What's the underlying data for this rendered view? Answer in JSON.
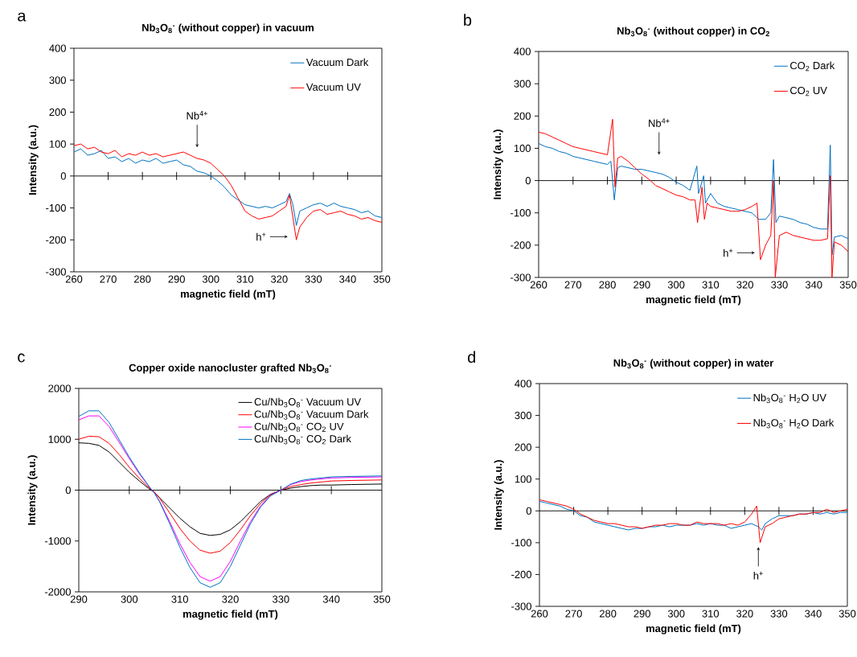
{
  "chart_data": [
    {
      "type": "line",
      "title": "Nb$_{3}$O$_{8}$$^{-}$ (without copper) in vacuum",
      "xlabel": "magnetic field (mT)",
      "ylabel": "Intensity (a.u.)",
      "xlim": [
        260,
        350
      ],
      "ylim": [
        -300,
        400
      ],
      "xticks": [
        260,
        270,
        280,
        290,
        300,
        310,
        320,
        330,
        340,
        350
      ],
      "yticks": [
        -300,
        -200,
        -100,
        0,
        100,
        200,
        300,
        400
      ],
      "legend": "top right",
      "marker": "none",
      "line_style": "solid",
      "annotations": [
        "a",
        "Nb$^{4+}$",
        "h$^{+}$"
      ],
      "series": [
        {
          "name": "Vacuum Dark",
          "color": "#0070c0",
          "x": [
            260,
            262,
            264,
            266,
            268,
            270,
            272,
            274,
            276,
            278,
            280,
            282,
            284,
            286,
            288,
            290,
            292,
            294,
            296,
            298,
            300,
            302,
            304,
            306,
            308,
            310,
            312,
            314,
            316,
            318,
            320,
            322,
            323,
            324,
            325,
            326,
            328,
            330,
            332,
            334,
            336,
            338,
            340,
            342,
            344,
            346,
            348,
            350
          ],
          "values": [
            75,
            85,
            65,
            70,
            80,
            55,
            60,
            45,
            55,
            40,
            50,
            45,
            55,
            40,
            45,
            50,
            35,
            30,
            15,
            10,
            0,
            -15,
            -35,
            -60,
            -75,
            -90,
            -95,
            -100,
            -95,
            -100,
            -90,
            -80,
            -55,
            -90,
            -155,
            -110,
            -100,
            -90,
            -85,
            -95,
            -85,
            -95,
            -100,
            -105,
            -115,
            -110,
            -125,
            -130
          ]
        },
        {
          "name": "Vacuum UV",
          "color": "#ff0000",
          "x": [
            260,
            262,
            264,
            266,
            268,
            270,
            272,
            274,
            276,
            278,
            280,
            282,
            284,
            286,
            288,
            290,
            292,
            294,
            296,
            298,
            300,
            302,
            304,
            306,
            308,
            310,
            312,
            314,
            316,
            318,
            320,
            322,
            323,
            324,
            325,
            326,
            328,
            330,
            332,
            334,
            336,
            338,
            340,
            342,
            344,
            346,
            348,
            350
          ],
          "values": [
            95,
            100,
            85,
            90,
            75,
            70,
            80,
            60,
            70,
            65,
            75,
            65,
            70,
            60,
            65,
            70,
            75,
            65,
            55,
            50,
            40,
            20,
            0,
            -30,
            -70,
            -110,
            -125,
            -135,
            -130,
            -125,
            -110,
            -95,
            -60,
            -130,
            -200,
            -160,
            -130,
            -110,
            -105,
            -120,
            -115,
            -110,
            -120,
            -125,
            -135,
            -130,
            -140,
            -145
          ]
        }
      ]
    },
    {
      "type": "line",
      "title": "Nb$_{3}$O$_{8}$$^{-}$ (without copper) in CO$_{2}$",
      "xlabel": "magnetic field (mT)",
      "ylabel": "Intensity (a.u.)",
      "xlim": [
        260,
        350
      ],
      "ylim": [
        -300,
        400
      ],
      "xticks": [
        260,
        270,
        280,
        290,
        300,
        310,
        320,
        330,
        340,
        350
      ],
      "yticks": [
        -300,
        -200,
        -100,
        0,
        100,
        200,
        300,
        400
      ],
      "legend": "top right",
      "marker": "none",
      "line_style": "solid",
      "annotations": [
        "b",
        "Nb$^{4+}$",
        "h$^{+}$"
      ],
      "series": [
        {
          "name": "CO$_{2}$ Dark",
          "color": "#0070c0",
          "x": [
            260,
            262,
            264,
            266,
            268,
            270,
            272,
            274,
            276,
            278,
            280,
            281,
            282,
            283,
            284,
            286,
            288,
            290,
            292,
            294,
            296,
            298,
            300,
            302,
            304,
            306,
            306.5,
            308,
            308.5,
            310,
            312,
            314,
            316,
            318,
            320,
            322,
            324,
            326,
            327.5,
            328.3,
            329,
            330,
            332,
            334,
            336,
            338,
            340,
            342,
            344,
            344.8,
            345.3,
            346,
            348,
            350
          ],
          "values": [
            115,
            105,
            100,
            90,
            85,
            75,
            70,
            65,
            60,
            55,
            50,
            60,
            -60,
            40,
            45,
            40,
            35,
            35,
            30,
            25,
            20,
            10,
            -5,
            -15,
            -30,
            45,
            -40,
            15,
            -70,
            -40,
            -70,
            -80,
            -85,
            -90,
            -95,
            -100,
            -120,
            -120,
            -100,
            65,
            -130,
            -110,
            -115,
            -120,
            -130,
            -135,
            -145,
            -150,
            -150,
            110,
            -230,
            -175,
            -170,
            -180
          ]
        },
        {
          "name": "CO$_{2}$ UV",
          "color": "#ff0000",
          "x": [
            260,
            262,
            264,
            266,
            268,
            270,
            272,
            274,
            276,
            278,
            280,
            281.5,
            282.2,
            283,
            284,
            286,
            288,
            290,
            292,
            294,
            296,
            298,
            300,
            302,
            304,
            305.5,
            306.2,
            307.5,
            308.2,
            309,
            310,
            312,
            314,
            316,
            318,
            320,
            322,
            323.5,
            324.5,
            326,
            327.5,
            328.3,
            328.8,
            330,
            332,
            334,
            336,
            338,
            340,
            342,
            344,
            344.8,
            345.3,
            346,
            348,
            350
          ],
          "values": [
            150,
            145,
            135,
            125,
            115,
            105,
            100,
            95,
            90,
            85,
            80,
            190,
            -20,
            70,
            75,
            60,
            40,
            20,
            5,
            -15,
            -25,
            -35,
            -45,
            -50,
            -60,
            -60,
            -130,
            -20,
            -120,
            -70,
            -80,
            -85,
            -90,
            -95,
            -95,
            -90,
            -80,
            -70,
            -245,
            -200,
            -170,
            0,
            -300,
            -170,
            -160,
            -170,
            -175,
            -180,
            -185,
            -185,
            -180,
            15,
            -300,
            -190,
            -200,
            -220
          ]
        }
      ]
    },
    {
      "type": "line",
      "title": "Copper oxide nanocluster grafted Nb$_{3}$O$_{8}$$^{-}$",
      "xlabel": "magnetic field (mT)",
      "ylabel": "Intensity (a.u.)",
      "xlim": [
        290,
        350
      ],
      "ylim": [
        -2000,
        2000
      ],
      "xticks": [
        290,
        300,
        310,
        320,
        330,
        340,
        350
      ],
      "yticks": [
        -2000,
        -1000,
        0,
        1000,
        2000
      ],
      "legend": "top right",
      "marker": "none",
      "line_style": "solid",
      "annotations": [
        "c"
      ],
      "series": [
        {
          "name": "Cu/Nb$_{3}$O$_{8}$$^{-}$ Vacuum UV",
          "color": "#000000",
          "x": [
            290,
            292,
            294,
            296,
            298,
            300,
            302,
            304,
            305,
            306,
            308,
            310,
            312,
            314,
            316,
            318,
            320,
            322,
            324,
            326,
            328,
            330,
            332,
            334,
            336,
            338,
            340,
            344,
            350
          ],
          "values": [
            930,
            920,
            880,
            750,
            550,
            350,
            180,
            20,
            -50,
            -150,
            -350,
            -550,
            -720,
            -850,
            -890,
            -870,
            -780,
            -620,
            -420,
            -220,
            -80,
            0,
            40,
            70,
            90,
            100,
            100,
            110,
            120
          ]
        },
        {
          "name": "Cu/Nb$_{3}$O$_{8}$$^{-}$ Vacuum Dark",
          "color": "#ff0000",
          "x": [
            290,
            292,
            294,
            296,
            298,
            300,
            302,
            304,
            305,
            306,
            308,
            310,
            312,
            314,
            316,
            318,
            320,
            322,
            324,
            326,
            328,
            330,
            332,
            334,
            336,
            338,
            340,
            344,
            350
          ],
          "values": [
            1000,
            1060,
            1050,
            920,
            700,
            450,
            230,
            40,
            -40,
            -160,
            -450,
            -750,
            -1000,
            -1180,
            -1240,
            -1200,
            -1030,
            -780,
            -500,
            -260,
            -90,
            0,
            70,
            110,
            140,
            160,
            180,
            190,
            200
          ]
        },
        {
          "name": "Cu/Nb$_{3}$O$_{8}$$^{-}$ CO$_{2}$ UV",
          "color": "#ff00ff",
          "x": [
            290,
            292,
            294,
            296,
            298,
            300,
            302,
            304,
            305,
            306,
            308,
            310,
            312,
            314,
            316,
            318,
            320,
            322,
            324,
            326,
            328,
            330,
            332,
            334,
            336,
            338,
            340,
            344,
            350
          ],
          "values": [
            1380,
            1460,
            1460,
            1250,
            940,
            620,
            320,
            60,
            -60,
            -220,
            -620,
            -1050,
            -1420,
            -1700,
            -1790,
            -1700,
            -1400,
            -1000,
            -620,
            -310,
            -100,
            0,
            110,
            170,
            200,
            220,
            240,
            250,
            260
          ]
        },
        {
          "name": "Cu/Nb$_{3}$O$_{8}$$^{-}$ CO$_{2}$ Dark",
          "color": "#0070c0",
          "x": [
            290,
            292,
            294,
            296,
            298,
            300,
            302,
            304,
            305,
            306,
            308,
            310,
            312,
            314,
            316,
            318,
            320,
            322,
            324,
            326,
            328,
            330,
            332,
            334,
            336,
            338,
            340,
            344,
            350
          ],
          "values": [
            1450,
            1560,
            1560,
            1330,
            990,
            650,
            340,
            60,
            -60,
            -230,
            -660,
            -1120,
            -1520,
            -1820,
            -1910,
            -1820,
            -1500,
            -1080,
            -660,
            -330,
            -110,
            0,
            120,
            190,
            220,
            240,
            260,
            270,
            280
          ]
        }
      ]
    },
    {
      "type": "line",
      "title": "Nb$_{3}$O$_{8}$$^{-}$ (without copper) in water",
      "xlabel": "magnetic field (mT)",
      "ylabel": "Intensity (a.u.)",
      "xlim": [
        260,
        350
      ],
      "ylim": [
        -300,
        400
      ],
      "xticks": [
        260,
        270,
        280,
        290,
        300,
        310,
        320,
        330,
        340,
        350
      ],
      "yticks": [
        -300,
        -200,
        -100,
        0,
        100,
        200,
        300,
        400
      ],
      "legend": "top right",
      "marker": "none",
      "line_style": "solid",
      "annotations": [
        "d",
        "h$^{+}$"
      ],
      "series": [
        {
          "name": "Nb$_{3}$O$_{8}$$^{-}$ H$_{2}$O UV",
          "color": "#0070c0",
          "x": [
            260,
            262,
            264,
            266,
            268,
            270,
            272,
            274,
            276,
            278,
            280,
            282,
            284,
            286,
            288,
            290,
            292,
            294,
            296,
            298,
            300,
            302,
            304,
            306,
            308,
            310,
            312,
            314,
            316,
            318,
            320,
            322,
            324,
            325,
            326,
            328,
            330,
            332,
            334,
            336,
            338,
            340,
            342,
            344,
            346,
            348,
            350
          ],
          "values": [
            30,
            25,
            20,
            15,
            5,
            0,
            -15,
            -20,
            -35,
            -40,
            -45,
            -50,
            -55,
            -60,
            -55,
            -55,
            -50,
            -50,
            -45,
            -50,
            -45,
            -45,
            -45,
            -40,
            -45,
            -40,
            -45,
            -45,
            -55,
            -50,
            -45,
            -40,
            -50,
            -60,
            -40,
            -25,
            -15,
            -15,
            -15,
            -10,
            -10,
            -5,
            -10,
            -5,
            -10,
            -5,
            -5
          ]
        },
        {
          "name": "Nb$_{3}$O$_{8}$$^{-}$ H$_{2}$O Dark",
          "color": "#ff0000",
          "x": [
            260,
            262,
            264,
            266,
            268,
            270,
            272,
            274,
            276,
            278,
            280,
            282,
            284,
            286,
            288,
            290,
            292,
            294,
            296,
            298,
            300,
            302,
            304,
            306,
            308,
            310,
            312,
            314,
            316,
            318,
            320,
            322,
            323.5,
            324.5,
            326,
            328,
            330,
            332,
            334,
            336,
            338,
            340,
            342,
            344,
            346,
            348,
            350
          ],
          "values": [
            35,
            30,
            25,
            20,
            15,
            5,
            -10,
            -20,
            -30,
            -35,
            -40,
            -40,
            -45,
            -50,
            -50,
            -55,
            -50,
            -45,
            -45,
            -40,
            -40,
            -45,
            -45,
            -35,
            -40,
            -40,
            -40,
            -45,
            -40,
            -45,
            -35,
            -10,
            15,
            -100,
            -50,
            -40,
            -25,
            -20,
            -15,
            -10,
            -10,
            -5,
            -5,
            5,
            -5,
            0,
            5
          ]
        }
      ]
    }
  ]
}
